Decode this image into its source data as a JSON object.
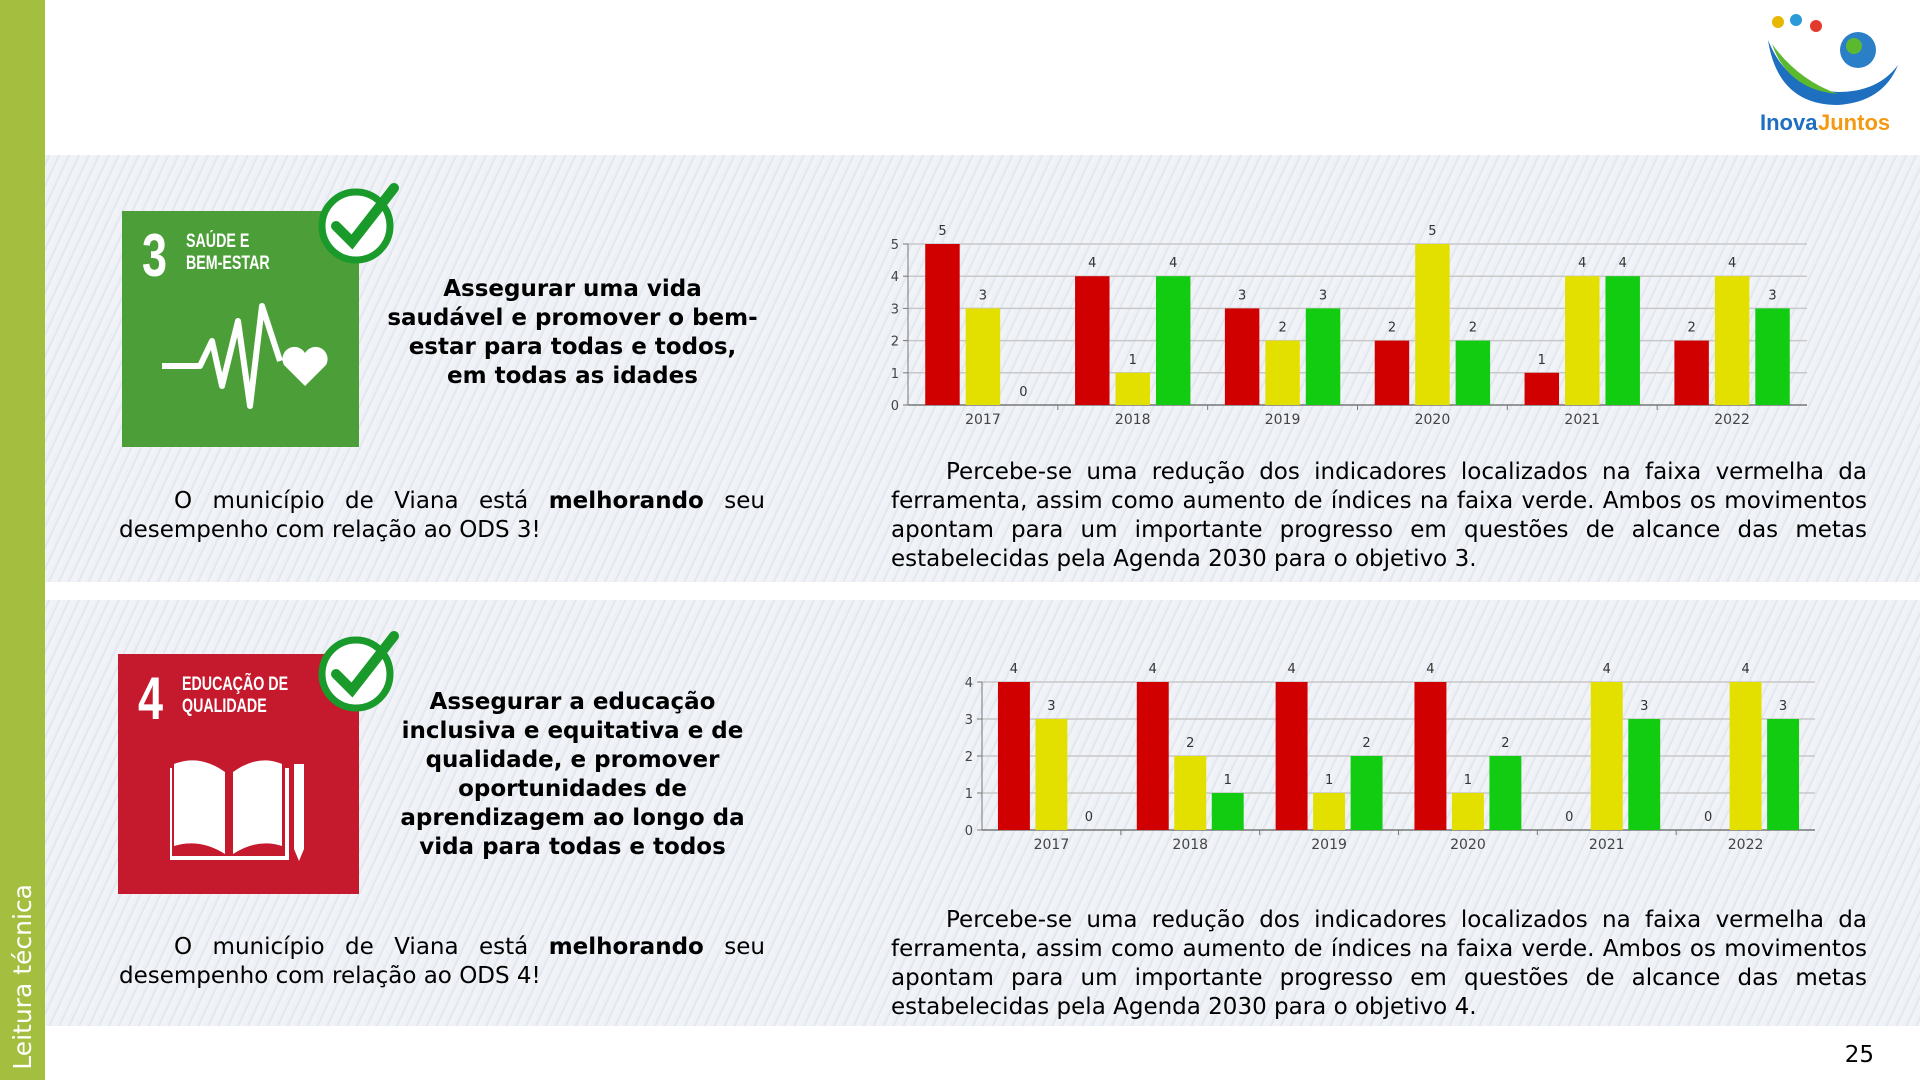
{
  "sidebar_label": "Leitura técnica",
  "page_number": "25",
  "logo_text": {
    "part1": "Inova",
    "part2": "Juntos"
  },
  "colors": {
    "red": "#d00000",
    "yellow": "#e3e000",
    "green": "#12cc12",
    "sdg3": "#4c9f38",
    "sdg4": "#c5192d",
    "sidebar": "#a4bf3f",
    "check": "#1a9a2a"
  },
  "sections": [
    {
      "sdg_number": "3",
      "sdg_title": "SAÚDE E\nBEM-ESTAR",
      "heading": "Assegurar uma vida saudável e promover o bem-estar para todas e todos, em todas as idades",
      "status_pre": "O município de Viana está ",
      "status_bold": "melhorando",
      "status_post": " seu desempenho com relação ao ODS 3!",
      "analysis": "Percebe-se uma redução dos indicadores localizados na faixa vermelha da ferramenta, assim como aumento de índices na faixa verde. Ambos os movimentos apontam para um importante progresso em questões de alcance das metas estabelecidas pela Agenda 2030 para o objetivo 3."
    },
    {
      "sdg_number": "4",
      "sdg_title": "EDUCAÇÃO DE\nQUALIDADE",
      "heading": "Assegurar a educação inclusiva e equitativa e de qualidade, e promover oportunidades de aprendizagem ao longo da vida para todas e todos",
      "status_pre": "O município de Viana está ",
      "status_bold": "melhorando",
      "status_post": " seu desempenho com relação ao ODS 4!",
      "analysis": "Percebe-se uma redução dos indicadores localizados na faixa vermelha da ferramenta, assim como aumento de índices na faixa verde. Ambos os movimentos apontam para um importante progresso em questões de alcance das metas estabelecidas pela Agenda 2030 para o objetivo 4."
    }
  ],
  "chart_data": [
    {
      "type": "bar",
      "categories": [
        "2017",
        "2018",
        "2019",
        "2020",
        "2021",
        "2022"
      ],
      "ylim": [
        0,
        5
      ],
      "yticks": [
        "0",
        "1",
        "2",
        "3",
        "4",
        "5"
      ],
      "grid": true,
      "series": [
        {
          "color": "#d00000",
          "values": [
            5,
            4,
            3,
            2,
            1,
            2
          ]
        },
        {
          "color": "#e3e000",
          "values": [
            3,
            1,
            2,
            5,
            4,
            4
          ]
        },
        {
          "color": "#12cc12",
          "values": [
            0,
            4,
            3,
            2,
            4,
            3
          ]
        }
      ]
    },
    {
      "type": "bar",
      "categories": [
        "2017",
        "2018",
        "2019",
        "2020",
        "2021",
        "2022"
      ],
      "ylim": [
        0,
        4
      ],
      "yticks": [
        "0",
        "1",
        "2",
        "3",
        "4"
      ],
      "grid": true,
      "series": [
        {
          "color": "#d00000",
          "values": [
            4,
            4,
            4,
            4,
            0,
            0
          ]
        },
        {
          "color": "#e3e000",
          "values": [
            3,
            2,
            1,
            1,
            4,
            4
          ]
        },
        {
          "color": "#12cc12",
          "values": [
            0,
            1,
            2,
            2,
            3,
            3
          ]
        }
      ]
    }
  ]
}
